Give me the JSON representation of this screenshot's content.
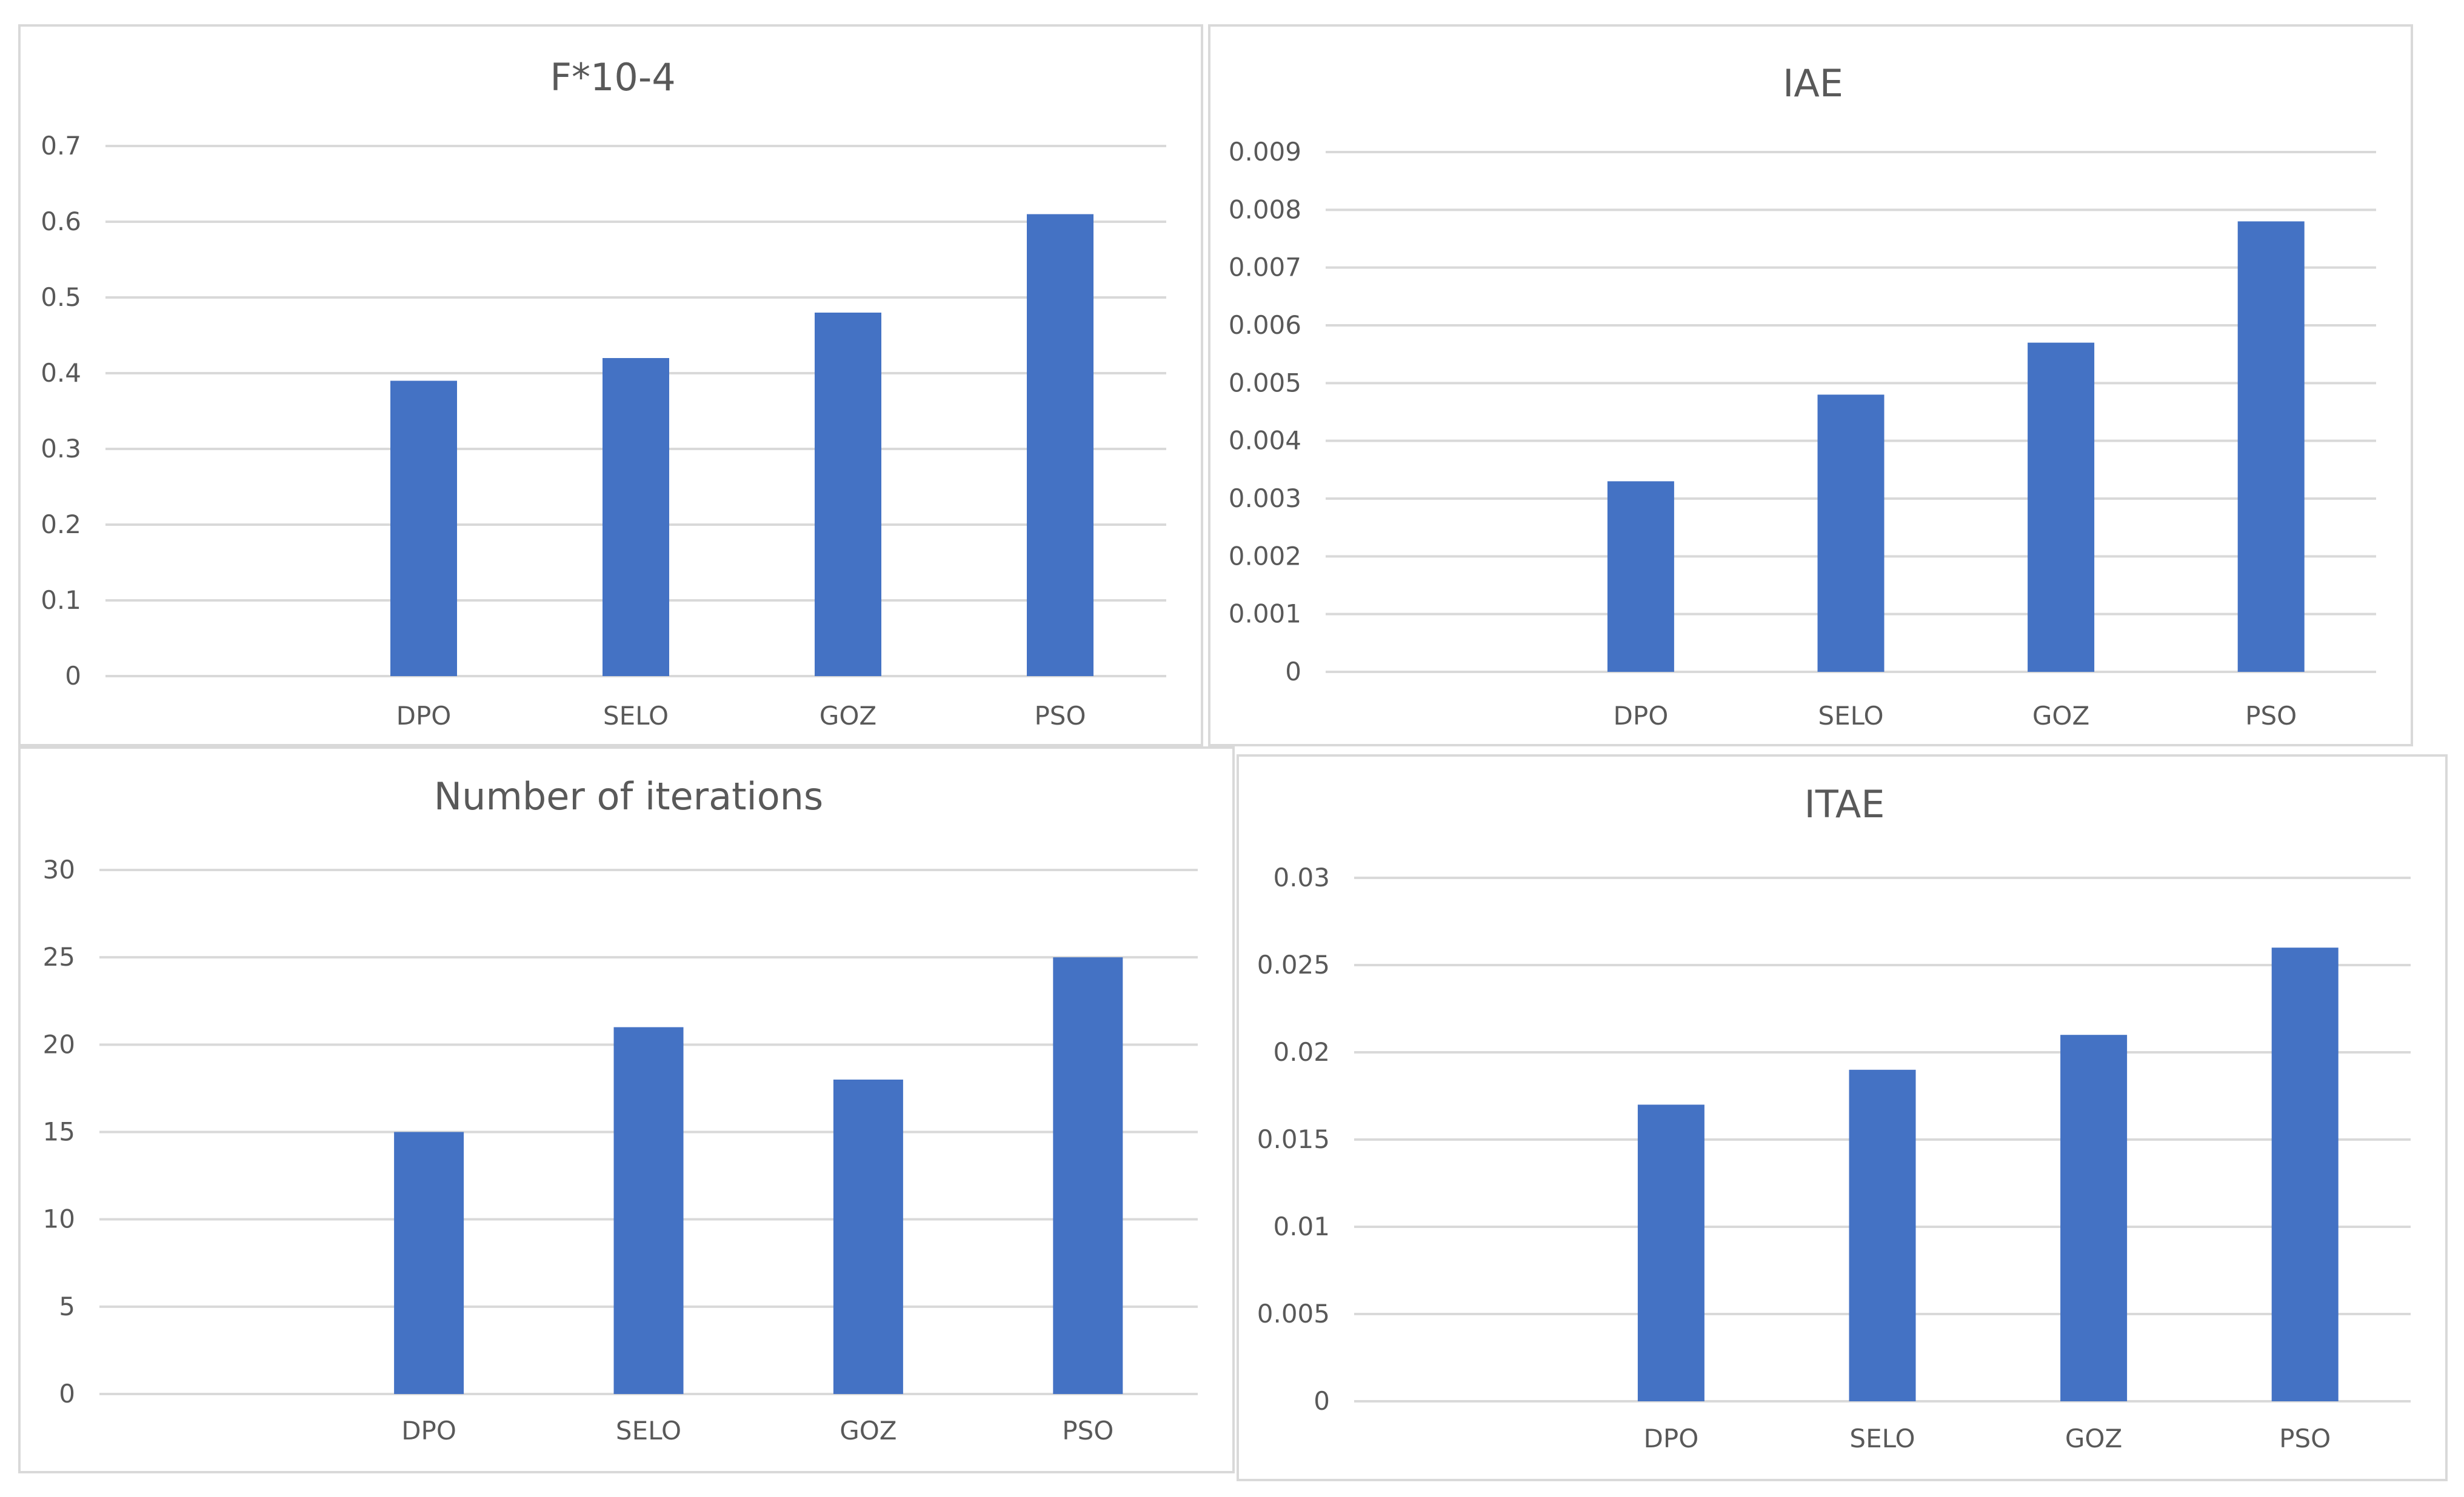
{
  "chart_data": [
    {
      "type": "bar",
      "title": "F*10-4",
      "categories": [
        "",
        "DPO",
        "SELO",
        "GOZ",
        "PSO"
      ],
      "values": [
        null,
        0.39,
        0.42,
        0.48,
        0.61
      ],
      "yticks": [
        "0",
        "0.1",
        "0.2",
        "0.3",
        "0.4",
        "0.5",
        "0.6",
        "0.7"
      ],
      "ylim": [
        0,
        0.7
      ],
      "xlabel": "",
      "ylabel": "",
      "bar_color": "#4472c4",
      "grid": true
    },
    {
      "type": "bar",
      "title": "IAE",
      "categories": [
        "",
        "DPO",
        "SELO",
        "GOZ",
        "PSO"
      ],
      "values": [
        null,
        0.0033,
        0.0048,
        0.0057,
        0.0078
      ],
      "yticks": [
        "0",
        "0.001",
        "0.002",
        "0.003",
        "0.004",
        "0.005",
        "0.006",
        "0.007",
        "0.008",
        "0.009"
      ],
      "ylim": [
        0,
        0.009
      ],
      "xlabel": "",
      "ylabel": "",
      "bar_color": "#4472c4",
      "grid": true
    },
    {
      "type": "bar",
      "title": "Number of iterations",
      "categories": [
        "",
        "DPO",
        "SELO",
        "GOZ",
        "PSO"
      ],
      "values": [
        null,
        15,
        21,
        18,
        25
      ],
      "yticks": [
        "0",
        "5",
        "10",
        "15",
        "20",
        "25",
        "30"
      ],
      "ylim": [
        0,
        30
      ],
      "xlabel": "",
      "ylabel": "",
      "bar_color": "#4472c4",
      "grid": true
    },
    {
      "type": "bar",
      "title": "ITAE",
      "categories": [
        "",
        "DPO",
        "SELO",
        "GOZ",
        "PSO"
      ],
      "values": [
        null,
        0.017,
        0.019,
        0.021,
        0.026
      ],
      "yticks": [
        "0",
        "0.005",
        "0.01",
        "0.015",
        "0.02",
        "0.025",
        "0.03"
      ],
      "ylim": [
        0,
        0.03
      ],
      "xlabel": "",
      "ylabel": "",
      "bar_color": "#4472c4",
      "grid": true
    }
  ]
}
